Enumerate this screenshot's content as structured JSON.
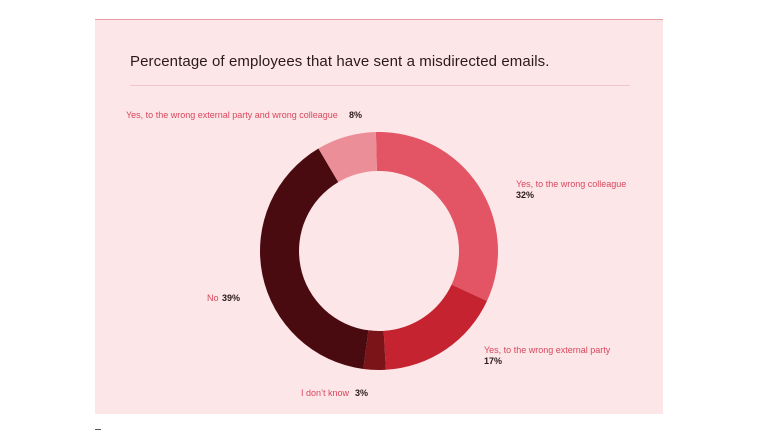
{
  "chart_data": {
    "type": "pie",
    "donut": true,
    "title": "Percentage of employees that have sent a misdirected emails.",
    "slices": [
      {
        "label": "Yes, to the wrong colleague",
        "value": 32,
        "value_label": "32%",
        "color": "#e35464"
      },
      {
        "label": "Yes, to the wrong external party",
        "value": 17,
        "value_label": "17%",
        "color": "#c4232f"
      },
      {
        "label": "I don’t know",
        "value": 3,
        "value_label": "3%",
        "color": "#7a1419"
      },
      {
        "label": "No",
        "value": 39,
        "value_label": "39%",
        "color": "#4a0b10"
      },
      {
        "label": "Yes, to the wrong external party and wrong colleague",
        "value": 8,
        "value_label": "8%",
        "color": "#ec8e98"
      }
    ]
  },
  "colors": {
    "card_background": "#fce6e8",
    "label_text": "#d9475d",
    "value_text": "#2a1a1c"
  }
}
